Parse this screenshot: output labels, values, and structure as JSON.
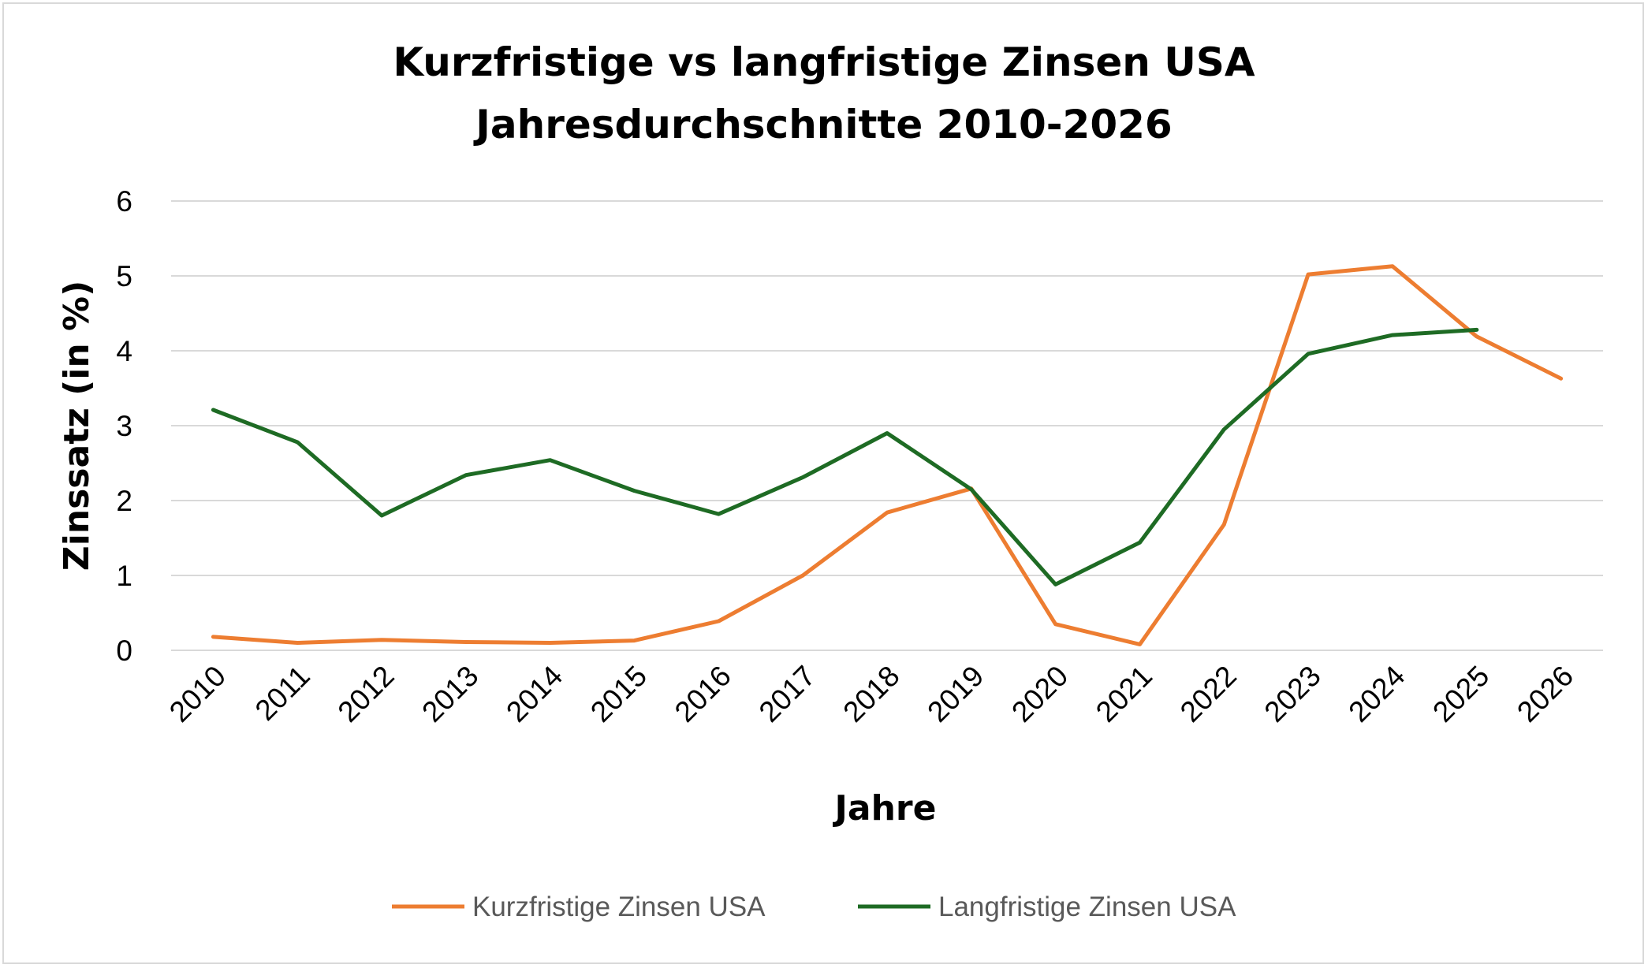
{
  "chart_data": {
    "type": "line",
    "title": "Kurzfristige vs langfristige Zinsen USA",
    "subtitle": "Jahresdurchschnitte 2010-2026",
    "xlabel": "Jahre",
    "ylabel": "Zinssatz (in %)",
    "ylim": [
      0,
      6
    ],
    "yticks": [
      0,
      1,
      2,
      3,
      4,
      5,
      6
    ],
    "grid": true,
    "legend_position": "bottom",
    "categories": [
      "2010",
      "2011",
      "2012",
      "2013",
      "2014",
      "2015",
      "2016",
      "2017",
      "2018",
      "2019",
      "2020",
      "2021",
      "2022",
      "2023",
      "2024",
      "2025",
      "2026"
    ],
    "series": [
      {
        "name": "Kurzfristige Zinsen USA",
        "color": "#ed7d31",
        "values": [
          0.18,
          0.1,
          0.14,
          0.11,
          0.1,
          0.13,
          0.39,
          1.0,
          1.84,
          2.16,
          0.35,
          0.08,
          1.68,
          5.02,
          5.13,
          4.19,
          3.63
        ]
      },
      {
        "name": "Langfristige Zinsen USA",
        "color": "#1e6b24",
        "values": [
          3.21,
          2.78,
          1.8,
          2.34,
          2.54,
          2.13,
          1.82,
          2.31,
          2.9,
          2.15,
          0.88,
          1.44,
          2.95,
          3.96,
          4.21,
          4.28,
          null
        ]
      }
    ]
  }
}
